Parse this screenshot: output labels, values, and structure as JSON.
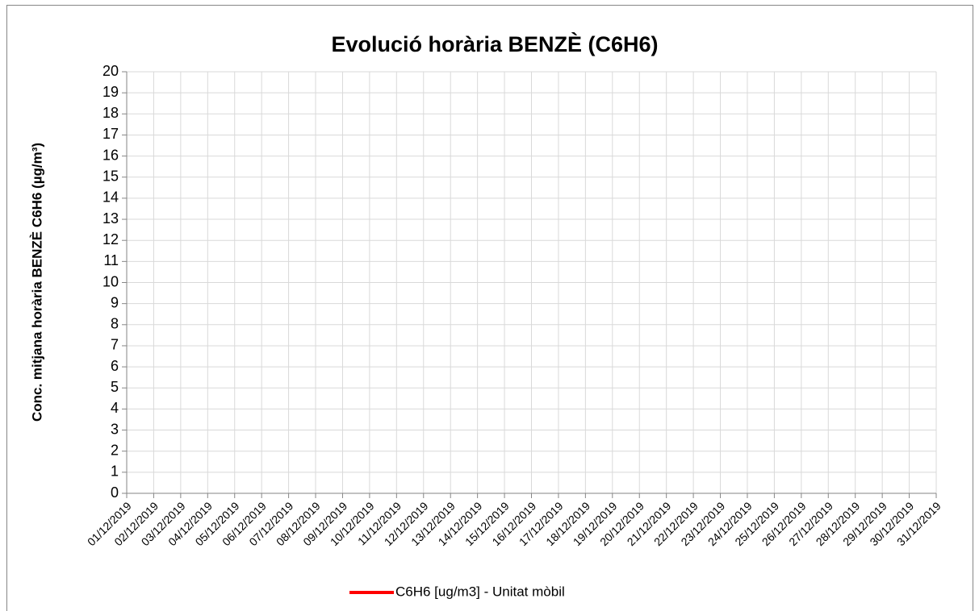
{
  "chart_data": {
    "type": "line",
    "title": "Evolució horària BENZÈ (C6H6)",
    "y_label": "Conc. mitjana horària BENZÈ C6H6 (µg/m³)",
    "categories": [
      "01/12/2019",
      "02/12/2019",
      "03/12/2019",
      "04/12/2019",
      "05/12/2019",
      "06/12/2019",
      "07/12/2019",
      "08/12/2019",
      "09/12/2019",
      "10/12/2019",
      "11/12/2019",
      "12/12/2019",
      "13/12/2019",
      "14/12/2019",
      "15/12/2019",
      "16/12/2019",
      "17/12/2019",
      "18/12/2019",
      "19/12/2019",
      "20/12/2019",
      "21/12/2019",
      "22/12/2019",
      "23/12/2019",
      "24/12/2019",
      "25/12/2019",
      "26/12/2019",
      "27/12/2019",
      "28/12/2019",
      "29/12/2019",
      "30/12/2019",
      "31/12/2019"
    ],
    "series": [
      {
        "name": "C6H6 [ug/m3] - Unitat mòbil",
        "color": "#ff0000",
        "values": [
          null,
          null,
          null,
          null,
          null,
          null,
          null,
          null,
          null,
          null,
          null,
          null,
          null,
          null,
          null,
          null,
          null,
          null,
          null,
          null,
          null,
          null,
          null,
          null,
          null,
          null,
          null,
          null,
          null,
          null,
          null
        ]
      }
    ],
    "ylim": [
      0,
      20
    ],
    "yticks": [
      0,
      1,
      2,
      3,
      4,
      5,
      6,
      7,
      8,
      9,
      10,
      11,
      12,
      13,
      14,
      15,
      16,
      17,
      18,
      19,
      20
    ],
    "grid": true
  }
}
